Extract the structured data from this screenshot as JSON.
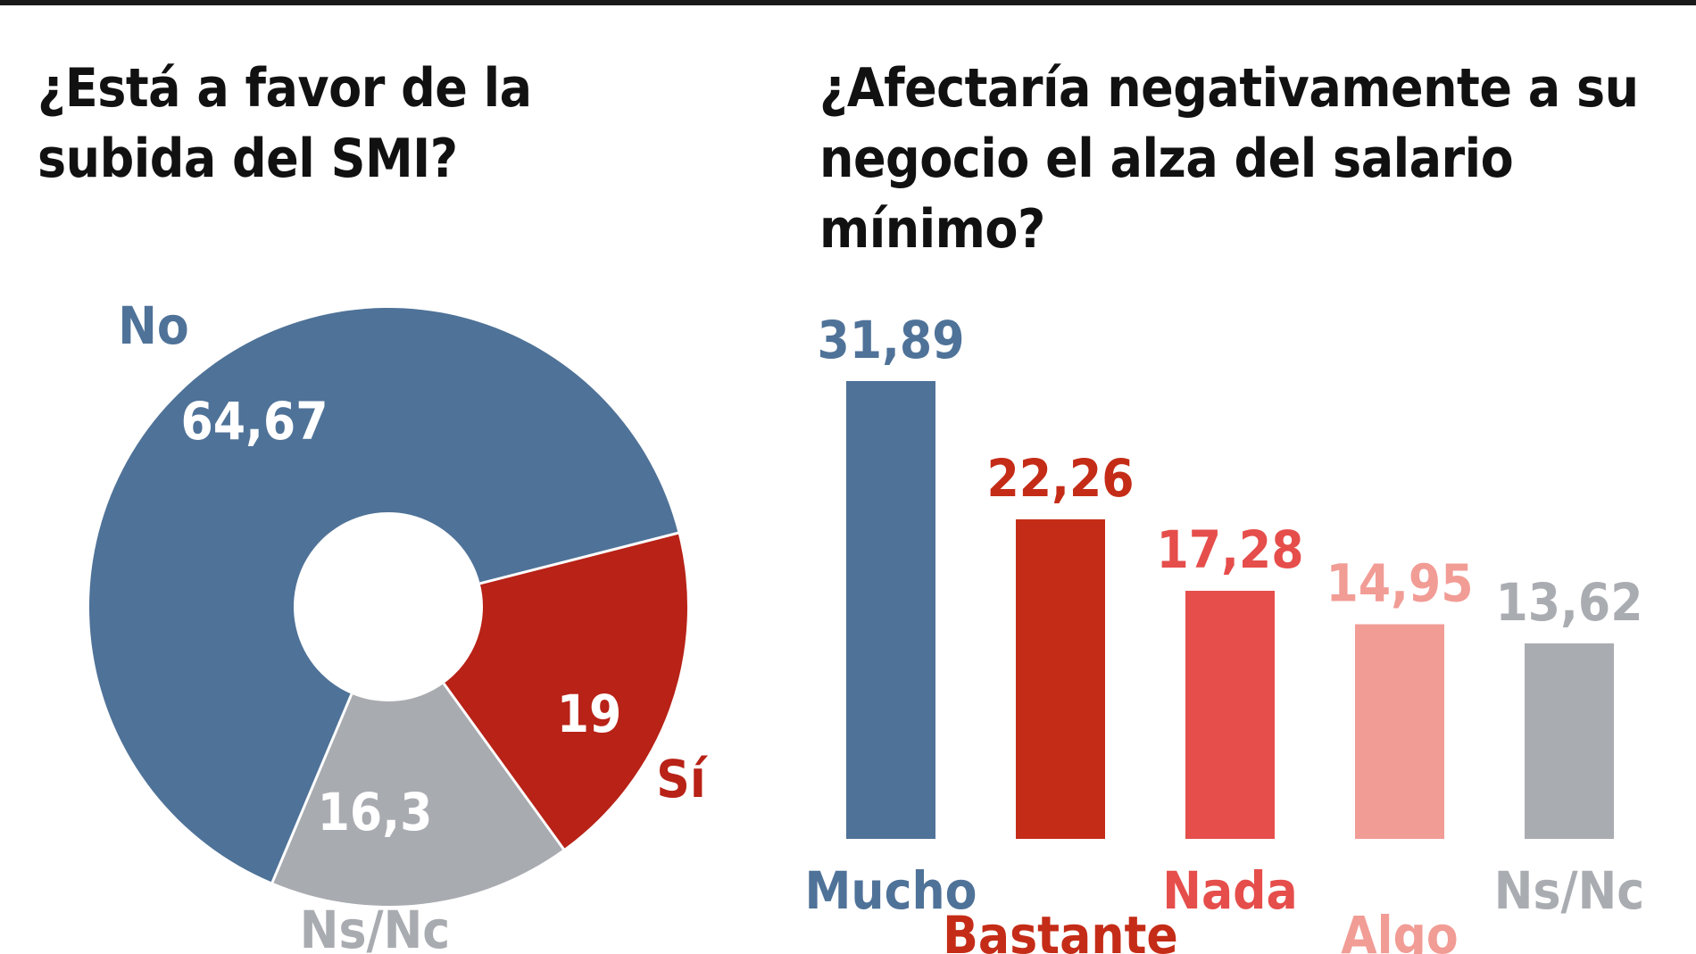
{
  "chart_data": [
    {
      "type": "pie",
      "title": "¿Está a favor de la subida del SMI?",
      "slices": [
        {
          "label": "No",
          "value": 64.67,
          "display": "64,67",
          "color": "#4f7298"
        },
        {
          "label": "Sí",
          "value": 19,
          "display": "19",
          "color": "#b82217"
        },
        {
          "label": "Ns/Nc",
          "value": 16.3,
          "display": "16,3",
          "color": "#a8abb0"
        }
      ]
    },
    {
      "type": "bar",
      "title": "¿Afectaría negativamente a su negocio el alza del salario mínimo?",
      "categories": [
        "Mucho",
        "Bastante",
        "Nada",
        "Algo",
        "Ns/Nc"
      ],
      "values": [
        31.89,
        22.26,
        17.28,
        14.95,
        13.62
      ],
      "value_labels": [
        "31,89",
        "22,26",
        "17,28",
        "14,95",
        "13,62"
      ],
      "colors": [
        "#4f7298",
        "#c42c17",
        "#e54e4b",
        "#f19c95",
        "#a9acb1"
      ],
      "ylim": [
        0,
        31.89
      ],
      "grid": false,
      "xlabel": "",
      "ylabel": ""
    }
  ]
}
